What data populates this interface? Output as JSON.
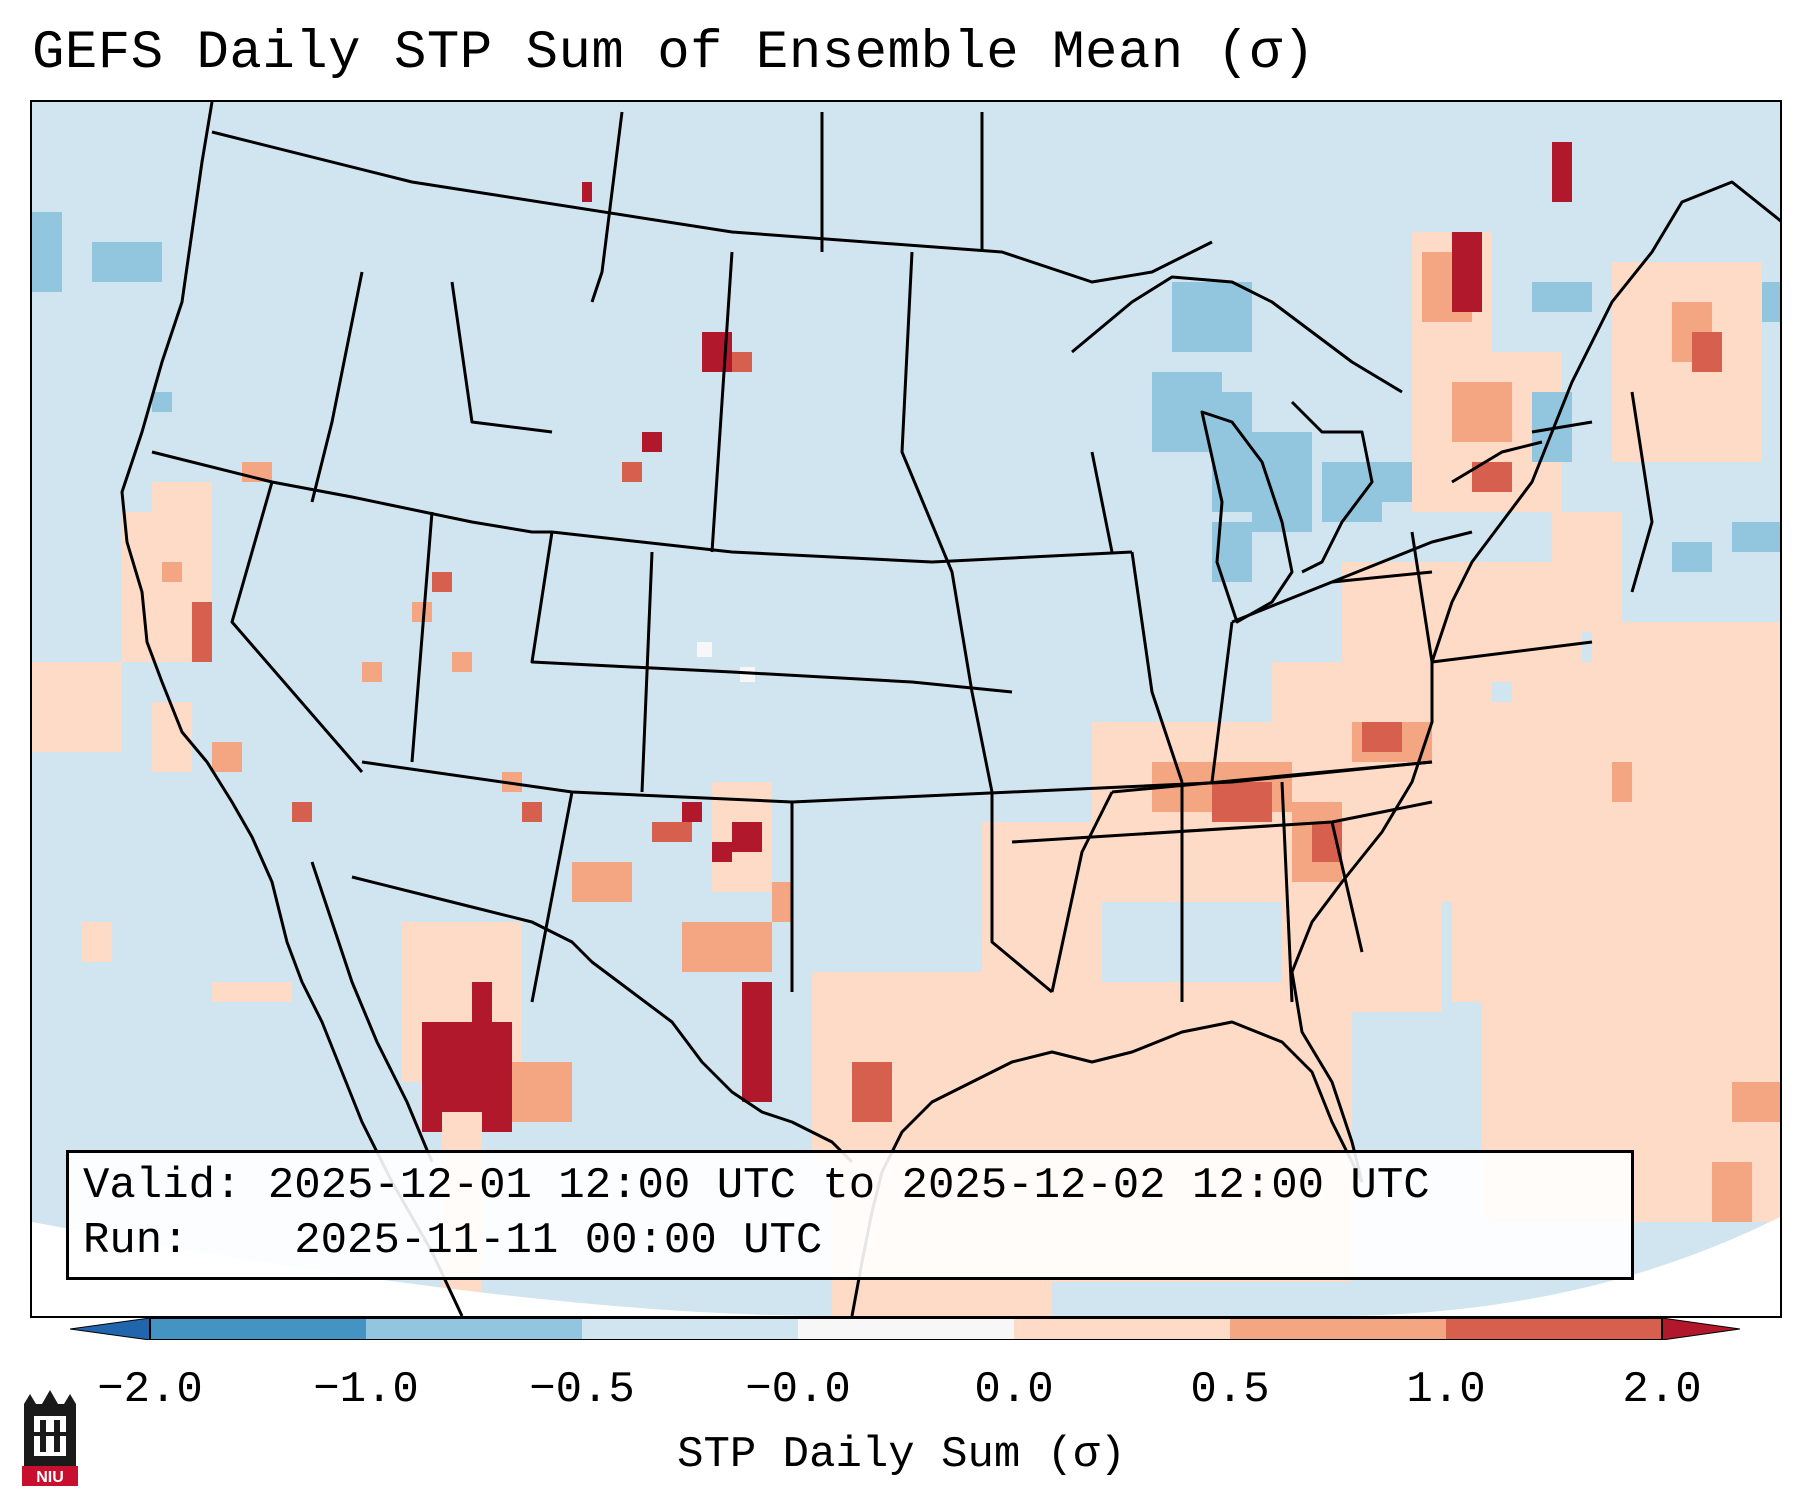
{
  "title": "GEFS Daily STP Sum of Ensemble Mean (σ)",
  "info": {
    "valid_label": "Valid:",
    "valid_value": "2025-12-01 12:00 UTC to 2025-12-02 12:00 UTC",
    "run_label": "Run:",
    "run_value": "2025-11-11 00:00 UTC"
  },
  "colorbar": {
    "label": "STP Daily Sum (σ)",
    "ticks": [
      "−2.0",
      "−1.0",
      "−0.5",
      "−0.0",
      "0.0",
      "0.5",
      "1.0",
      "2.0"
    ],
    "bin_colors": [
      "#4393c3",
      "#92c5de",
      "#d1e5f0",
      "#f7f7f7",
      "#fddbc7",
      "#f4a582",
      "#d6604d"
    ],
    "under_color": "#2166ac",
    "over_color": "#b2182b"
  },
  "map": {
    "region": "Contiguous United States",
    "background_color": "#d1e5f0",
    "outline_color": "#000000"
  },
  "logo": {
    "text": "NIU"
  }
}
